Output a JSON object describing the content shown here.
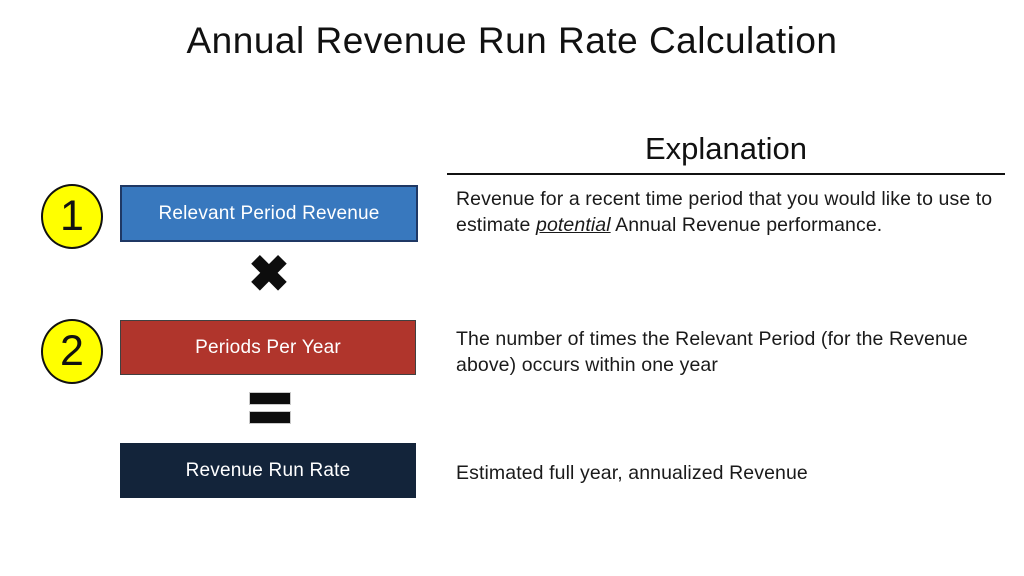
{
  "title": "Annual Revenue Run Rate Calculation",
  "explanation_header": "Explanation",
  "rows": [
    {
      "number": "1",
      "box_label": "Relevant Period Revenue",
      "box_color": "#3878BE",
      "box_border_color": "#1F3864",
      "explanation_pre": "Revenue for a recent time period that you would like to use to estimate ",
      "explanation_emphasis": "potential",
      "explanation_post": " Annual Revenue performance."
    },
    {
      "number": "2",
      "box_label": "Periods Per Year",
      "box_color": "#B0352C",
      "box_border_color": "#404040",
      "explanation": "The number of times the Relevant Period (for the Revenue above) occurs within one year"
    },
    {
      "box_label": "Revenue Run Rate",
      "box_color": "#13243A",
      "box_border_color": "#13243A",
      "explanation": "Estimated full year, annualized Revenue"
    }
  ],
  "operators": {
    "multiply_glyph": "✖",
    "equals_name": "heavy-equals"
  },
  "badge_color": "#FFFF00",
  "text_color": "#111111",
  "background_color": "#FFFFFF"
}
